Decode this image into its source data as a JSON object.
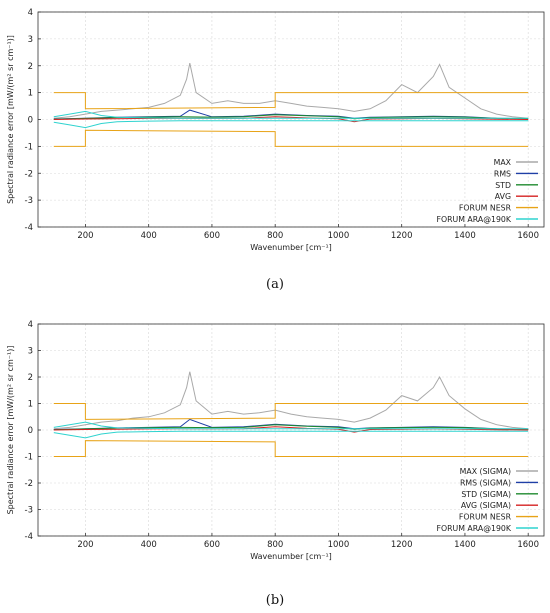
{
  "chart_data": [
    {
      "type": "line",
      "caption": "(a)",
      "xlabel": "Wavenumber [cm⁻¹]",
      "ylabel": "Spectral radiance error [mW/(m² sr cm⁻¹)]",
      "xlim": [
        50,
        1650
      ],
      "ylim": [
        -4,
        4
      ],
      "xticks": [
        200,
        400,
        600,
        800,
        1000,
        1200,
        1400,
        1600
      ],
      "yticks": [
        -4,
        -3,
        -2,
        -1,
        0,
        1,
        2,
        3,
        4
      ],
      "grid": true,
      "legend_position": "bottom-right",
      "series": [
        {
          "name": "MAX",
          "color": "#a9a9a9",
          "x": [
            100,
            150,
            200,
            250,
            300,
            350,
            400,
            450,
            500,
            520,
            530,
            550,
            600,
            650,
            700,
            750,
            800,
            850,
            900,
            950,
            1000,
            1050,
            1100,
            1150,
            1200,
            1250,
            1300,
            1320,
            1350,
            1400,
            1450,
            1500,
            1550,
            1600
          ],
          "values": [
            0.05,
            0.1,
            0.2,
            0.3,
            0.35,
            0.4,
            0.45,
            0.6,
            0.9,
            1.5,
            2.1,
            1.0,
            0.6,
            0.7,
            0.6,
            0.6,
            0.7,
            0.6,
            0.5,
            0.45,
            0.4,
            0.3,
            0.4,
            0.7,
            1.3,
            1.0,
            1.6,
            2.05,
            1.2,
            0.8,
            0.4,
            0.2,
            0.1,
            0.05
          ]
        },
        {
          "name": "RMS",
          "color": "#1f3fa6",
          "x": [
            100,
            200,
            300,
            400,
            500,
            530,
            600,
            700,
            800,
            900,
            1000,
            1050,
            1100,
            1200,
            1300,
            1400,
            1500,
            1600
          ],
          "values": [
            0.02,
            0.05,
            0.08,
            0.1,
            0.12,
            0.35,
            0.1,
            0.12,
            0.2,
            0.15,
            0.12,
            0.05,
            0.08,
            0.1,
            0.12,
            0.1,
            0.05,
            0.03
          ]
        },
        {
          "name": "STD",
          "color": "#1e8a2e",
          "x": [
            100,
            200,
            300,
            400,
            500,
            600,
            700,
            800,
            900,
            1000,
            1050,
            1100,
            1200,
            1300,
            1400,
            1500,
            1600
          ],
          "values": [
            0.01,
            0.04,
            0.07,
            0.09,
            0.1,
            0.09,
            0.1,
            0.18,
            0.14,
            0.1,
            0.03,
            0.07,
            0.09,
            0.1,
            0.09,
            0.04,
            0.02
          ]
        },
        {
          "name": "AVG",
          "color": "#d42020",
          "x": [
            100,
            200,
            300,
            400,
            500,
            600,
            700,
            800,
            900,
            1000,
            1050,
            1100,
            1200,
            1300,
            1400,
            1500,
            1600
          ],
          "values": [
            0.0,
            0.02,
            0.03,
            0.04,
            0.05,
            0.04,
            0.05,
            0.1,
            0.06,
            0.03,
            -0.08,
            0.02,
            0.03,
            0.04,
            0.03,
            0.01,
            0.0
          ]
        },
        {
          "name": "FORUM NESR",
          "color": "#e8a317",
          "x": [
            100,
            200,
            200,
            800,
            800,
            1600
          ],
          "values": [
            1.0,
            1.0,
            0.4,
            0.45,
            1.0,
            1.0
          ],
          "mirror": true
        },
        {
          "name": "FORUM ARA@190K",
          "color": "#2fd3cf",
          "x": [
            100,
            150,
            200,
            250,
            300,
            400,
            500,
            600,
            700,
            800,
            900,
            1000,
            1100,
            1200,
            1300,
            1400,
            1500,
            1600
          ],
          "values": [
            0.1,
            0.2,
            0.3,
            0.15,
            0.08,
            0.06,
            0.05,
            0.05,
            0.05,
            0.05,
            0.05,
            0.05,
            0.05,
            0.05,
            0.05,
            0.05,
            0.05,
            0.05
          ],
          "mirror": true
        }
      ]
    },
    {
      "type": "line",
      "caption": "(b)",
      "xlabel": "Wavenumber [cm⁻¹]",
      "ylabel": "Spectral radiance error [mW/(m² sr cm⁻¹)]",
      "xlim": [
        50,
        1650
      ],
      "ylim": [
        -4,
        4
      ],
      "xticks": [
        200,
        400,
        600,
        800,
        1000,
        1200,
        1400,
        1600
      ],
      "yticks": [
        -4,
        -3,
        -2,
        -1,
        0,
        1,
        2,
        3,
        4
      ],
      "grid": true,
      "legend_position": "bottom-right",
      "series": [
        {
          "name": "MAX (SIGMA)",
          "color": "#a9a9a9",
          "x": [
            100,
            150,
            200,
            250,
            300,
            350,
            400,
            450,
            500,
            520,
            530,
            550,
            600,
            650,
            700,
            750,
            800,
            850,
            900,
            950,
            1000,
            1050,
            1100,
            1150,
            1200,
            1250,
            1300,
            1320,
            1350,
            1400,
            1450,
            1500,
            1550,
            1600
          ],
          "values": [
            0.05,
            0.1,
            0.2,
            0.3,
            0.35,
            0.45,
            0.5,
            0.65,
            0.95,
            1.6,
            2.2,
            1.1,
            0.6,
            0.7,
            0.6,
            0.65,
            0.75,
            0.6,
            0.5,
            0.45,
            0.4,
            0.3,
            0.45,
            0.75,
            1.3,
            1.1,
            1.6,
            2.0,
            1.3,
            0.8,
            0.4,
            0.2,
            0.1,
            0.05
          ]
        },
        {
          "name": "RMS (SIGMA)",
          "color": "#1f3fa6",
          "x": [
            100,
            200,
            300,
            400,
            500,
            530,
            600,
            700,
            800,
            900,
            1000,
            1050,
            1100,
            1200,
            1300,
            1400,
            1500,
            1600
          ],
          "values": [
            0.02,
            0.05,
            0.08,
            0.1,
            0.12,
            0.4,
            0.1,
            0.12,
            0.22,
            0.15,
            0.12,
            0.05,
            0.08,
            0.1,
            0.12,
            0.1,
            0.05,
            0.03
          ]
        },
        {
          "name": "STD (SIGMA)",
          "color": "#1e8a2e",
          "x": [
            100,
            200,
            300,
            400,
            500,
            600,
            700,
            800,
            900,
            1000,
            1050,
            1100,
            1200,
            1300,
            1400,
            1500,
            1600
          ],
          "values": [
            0.01,
            0.04,
            0.07,
            0.09,
            0.1,
            0.09,
            0.1,
            0.2,
            0.14,
            0.1,
            0.03,
            0.07,
            0.09,
            0.1,
            0.09,
            0.04,
            0.02
          ]
        },
        {
          "name": "AVG (SIGMA)",
          "color": "#d42020",
          "x": [
            100,
            200,
            300,
            400,
            500,
            600,
            700,
            800,
            900,
            1000,
            1050,
            1100,
            1200,
            1300,
            1400,
            1500,
            1600
          ],
          "values": [
            0.0,
            0.02,
            0.03,
            0.04,
            0.05,
            0.04,
            0.05,
            0.12,
            0.06,
            0.03,
            -0.08,
            0.02,
            0.03,
            0.04,
            0.03,
            0.01,
            0.0
          ]
        },
        {
          "name": "FORUM NESR",
          "color": "#e8a317",
          "x": [
            100,
            200,
            200,
            800,
            800,
            1600
          ],
          "values": [
            1.0,
            1.0,
            0.4,
            0.45,
            1.0,
            1.0
          ],
          "mirror": true
        },
        {
          "name": "FORUM ARA@190K",
          "color": "#2fd3cf",
          "x": [
            100,
            150,
            200,
            250,
            300,
            400,
            500,
            600,
            700,
            800,
            900,
            1000,
            1100,
            1200,
            1300,
            1400,
            1500,
            1600
          ],
          "values": [
            0.1,
            0.2,
            0.3,
            0.15,
            0.08,
            0.06,
            0.05,
            0.05,
            0.05,
            0.05,
            0.05,
            0.05,
            0.05,
            0.05,
            0.05,
            0.05,
            0.05,
            0.05
          ],
          "mirror": true
        }
      ]
    }
  ]
}
